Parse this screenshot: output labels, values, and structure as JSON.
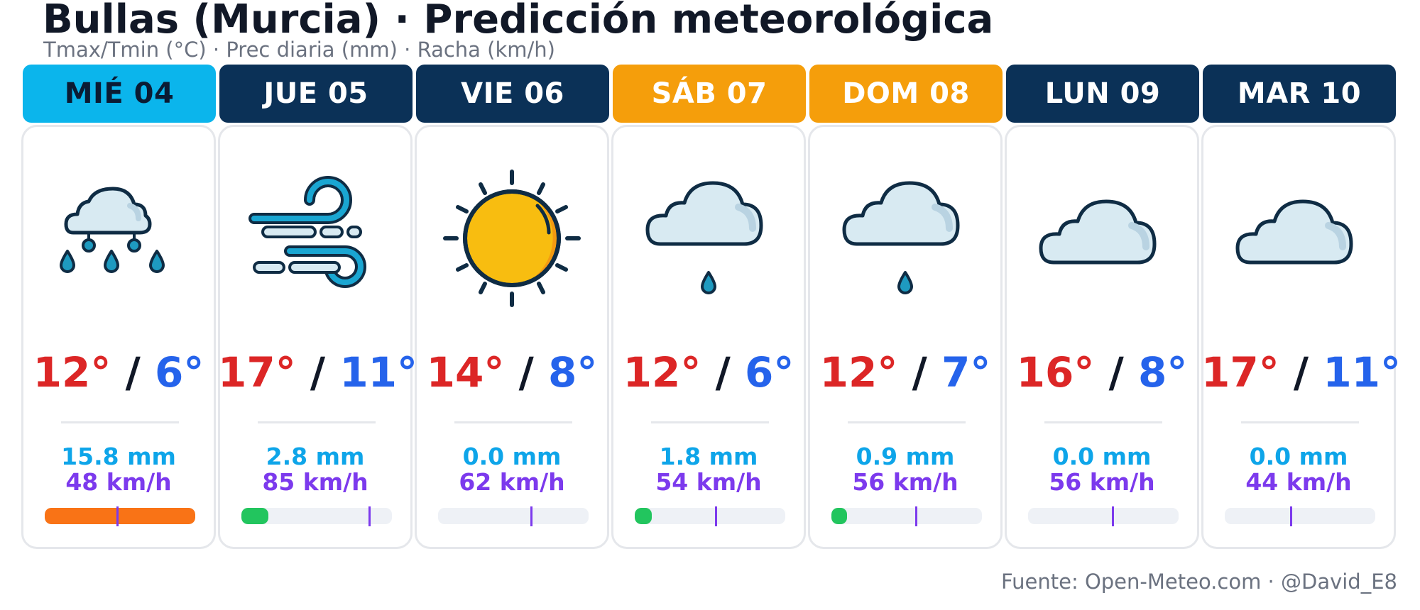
{
  "header": {
    "title": "Bullas (Murcia) · Predicción meteorológica",
    "subtitle": "Tmax/Tmin (°C) · Prec diaria (mm) · Racha (km/h)"
  },
  "days": [
    {
      "label": "MIÉ 04",
      "header_color": "#0bb5ec",
      "header_text_color": "#0b1b33",
      "icon": "rain-cloud-icon",
      "tmax": "12°",
      "tmin": "6°",
      "precip": "15.8 mm",
      "gust": "48 km/h",
      "precip_mm": 15.8,
      "gust_kmh": 48,
      "bar_color": "#f97316"
    },
    {
      "label": "JUE 05",
      "header_color": "#0b3157",
      "header_text_color": "#ffffff",
      "icon": "wind-icon",
      "tmax": "17°",
      "tmin": "11°",
      "precip": "2.8 mm",
      "gust": "85 km/h",
      "precip_mm": 2.8,
      "gust_kmh": 85,
      "bar_color": "#22c55e"
    },
    {
      "label": "VIE 06",
      "header_color": "#0b3157",
      "header_text_color": "#ffffff",
      "icon": "sun-icon",
      "tmax": "14°",
      "tmin": "8°",
      "precip": "0.0 mm",
      "gust": "62 km/h",
      "precip_mm": 0.0,
      "gust_kmh": 62,
      "bar_color": "#22c55e"
    },
    {
      "label": "SÁB 07",
      "header_color": "#f59e0b",
      "header_text_color": "#ffffff",
      "icon": "drizzle-cloud-icon",
      "tmax": "12°",
      "tmin": "6°",
      "precip": "1.8 mm",
      "gust": "54 km/h",
      "precip_mm": 1.8,
      "gust_kmh": 54,
      "bar_color": "#22c55e"
    },
    {
      "label": "DOM 08",
      "header_color": "#f59e0b",
      "header_text_color": "#ffffff",
      "icon": "drizzle-cloud-icon",
      "tmax": "12°",
      "tmin": "7°",
      "precip": "0.9 mm",
      "gust": "56 km/h",
      "precip_mm": 0.9,
      "gust_kmh": 56,
      "bar_color": "#22c55e"
    },
    {
      "label": "LUN 09",
      "header_color": "#0b3157",
      "header_text_color": "#ffffff",
      "icon": "cloud-icon",
      "tmax": "16°",
      "tmin": "8°",
      "precip": "0.0 mm",
      "gust": "56 km/h",
      "precip_mm": 0.0,
      "gust_kmh": 56,
      "bar_color": "#22c55e"
    },
    {
      "label": "MAR 10",
      "header_color": "#0b3157",
      "header_text_color": "#ffffff",
      "icon": "cloud-icon",
      "tmax": "17°",
      "tmin": "11°",
      "precip": "0.0 mm",
      "gust": "44 km/h",
      "precip_mm": 0.0,
      "gust_kmh": 44,
      "bar_color": "#22c55e"
    }
  ],
  "temp_separator": "/",
  "footer": {
    "source": "Fuente: Open-Meteo.com · @David_E8"
  }
}
